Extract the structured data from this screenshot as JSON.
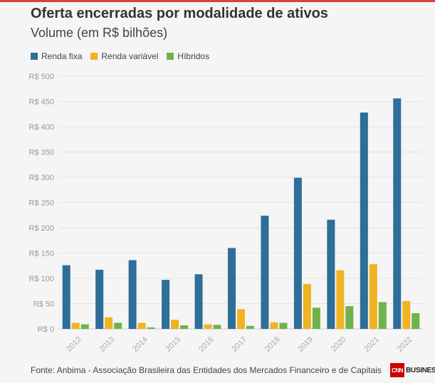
{
  "chart_data": {
    "type": "bar",
    "title": "Oferta encerradas por modalidade de ativos",
    "subtitle": "Volume (em R$ bilhões)",
    "categories": [
      "2012",
      "2013",
      "2014",
      "2015",
      "2016",
      "2017",
      "2018",
      "2019",
      "2020",
      "2021",
      "2022"
    ],
    "series": [
      {
        "name": "Renda fixa",
        "color": "#2e6e99",
        "values": [
          126,
          117,
          136,
          97,
          108,
          160,
          224,
          299,
          216,
          428,
          456
        ]
      },
      {
        "name": "Renda variável",
        "color": "#f0b323",
        "values": [
          12,
          23,
          12,
          18,
          9,
          39,
          13,
          89,
          116,
          128,
          55
        ]
      },
      {
        "name": "Híbridos",
        "color": "#6fb34a",
        "values": [
          9,
          12,
          3,
          7,
          8,
          6,
          12,
          42,
          45,
          53,
          31
        ]
      }
    ],
    "ylim": [
      0,
      500
    ],
    "yticks": [
      0,
      50,
      100,
      150,
      200,
      250,
      300,
      350,
      400,
      450,
      500
    ],
    "ytick_labels": [
      "R$ 0",
      "R$ 50",
      "R$ 100",
      "R$ 150",
      "R$ 200",
      "R$ 250",
      "R$ 300",
      "R$ 350",
      "R$ 400",
      "R$ 450",
      "R$ 500"
    ],
    "grid": true,
    "legend": "top-left",
    "source": "Fonte: Anbima - Associação Brasileira das Entidades dos Mercados Financeiro e de Capitais"
  },
  "logo": {
    "box": "CNN",
    "text": "BUSINESS"
  }
}
